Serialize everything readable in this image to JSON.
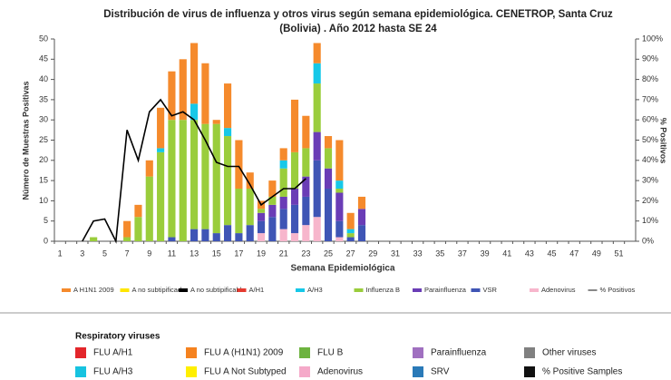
{
  "chart_data": {
    "type": "bar",
    "title": "Distribución de virus de influenza y otros virus según semana epidemiológica. CENETROP, Santa Cruz (Bolivia) .  Año 2012 hasta SE 24",
    "x_label": "Semana Epidemiológica",
    "y_label": "Número de Muestras Positivas",
    "y2_label": "% Positivos",
    "categories": [
      1,
      null,
      3,
      null,
      5,
      null,
      7,
      null,
      9,
      null,
      11,
      null,
      13,
      null,
      15,
      null,
      17,
      null,
      19,
      null,
      21,
      null,
      23,
      null,
      25,
      null,
      27,
      null,
      29,
      null,
      31,
      null,
      33,
      null,
      35,
      null,
      37,
      null,
      39,
      null,
      41,
      null,
      43,
      null,
      45,
      null,
      47,
      null,
      49,
      null,
      51,
      null
    ],
    "ylim": [
      0,
      50
    ],
    "yticks": [
      0,
      5,
      10,
      15,
      20,
      25,
      30,
      35,
      40,
      45,
      50
    ],
    "y2lim": [
      0,
      100
    ],
    "y2ticks": [
      {
        "value": 0,
        "label": "0%"
      },
      {
        "value": 10,
        "label": "10%"
      },
      {
        "value": 20,
        "label": "20%"
      },
      {
        "value": 30,
        "label": "30%"
      },
      {
        "value": 40,
        "label": "40%"
      },
      {
        "value": 50,
        "label": "50%"
      },
      {
        "value": 60,
        "label": "60%"
      },
      {
        "value": 70,
        "label": "70%"
      },
      {
        "value": 80,
        "label": "80%"
      },
      {
        "value": 90,
        "label": "90%"
      },
      {
        "value": 100,
        "label": "100%"
      }
    ],
    "stacked": true,
    "series": [
      {
        "name": "A H1N1 2009",
        "color": "#f58a2c",
        "values": [
          0,
          0,
          0,
          0,
          0,
          0,
          4,
          3,
          4,
          10,
          12,
          15,
          15,
          15,
          1,
          11,
          12,
          4,
          2,
          4,
          3,
          13,
          8,
          5,
          3,
          10,
          4,
          3,
          null,
          null,
          null,
          null,
          null,
          null,
          null,
          null,
          null,
          null,
          null,
          null,
          null,
          null,
          null,
          null,
          null,
          null,
          null,
          null,
          null,
          null,
          null,
          null
        ]
      },
      {
        "name": "A no subtipificado",
        "color": "#ffe600",
        "values": [
          0,
          0,
          0,
          0,
          0,
          0,
          0,
          0,
          0,
          0,
          0,
          0,
          0,
          0,
          0,
          0,
          0,
          0,
          0,
          0,
          0,
          0,
          0,
          0,
          0,
          0,
          0,
          0,
          null,
          null,
          null,
          null,
          null,
          null,
          null,
          null,
          null,
          null,
          null,
          null,
          null,
          null,
          null,
          null,
          null,
          null,
          null,
          null,
          null,
          null,
          null,
          null
        ]
      },
      {
        "name": "A no subtipificable",
        "color": "#000000",
        "values": [
          0,
          0,
          0,
          0,
          0,
          0,
          0,
          0,
          0,
          0,
          0,
          0,
          0,
          0,
          0,
          0,
          0,
          0,
          0,
          0,
          0,
          0,
          0,
          0,
          0,
          0,
          0,
          0,
          null,
          null,
          null,
          null,
          null,
          null,
          null,
          null,
          null,
          null,
          null,
          null,
          null,
          null,
          null,
          null,
          null,
          null,
          null,
          null,
          null,
          null,
          null,
          null
        ]
      },
      {
        "name": "A/H1",
        "color": "#e53a2f",
        "values": [
          0,
          0,
          0,
          0,
          0,
          0,
          0,
          0,
          0,
          0,
          0,
          0,
          0,
          0,
          0,
          0,
          0,
          0,
          0,
          0,
          0,
          0,
          0,
          0,
          0,
          0,
          0,
          0,
          null,
          null,
          null,
          null,
          null,
          null,
          null,
          null,
          null,
          null,
          null,
          null,
          null,
          null,
          null,
          null,
          null,
          null,
          null,
          null,
          null,
          null,
          null,
          null
        ]
      },
      {
        "name": "A/H3",
        "color": "#16c8e8",
        "values": [
          0,
          0,
          0,
          0,
          0,
          0,
          0,
          0,
          0,
          1,
          0,
          0,
          4,
          0,
          0,
          2,
          0,
          0,
          0,
          0,
          2,
          0,
          0,
          5,
          0,
          2,
          1,
          0,
          null,
          null,
          null,
          null,
          null,
          null,
          null,
          null,
          null,
          null,
          null,
          null,
          null,
          null,
          null,
          null,
          null,
          null,
          null,
          null,
          null,
          null,
          null,
          null
        ]
      },
      {
        "name": "Influenza  B",
        "color": "#9acd3c",
        "values": [
          0,
          0,
          0,
          1,
          0,
          0,
          1,
          6,
          16,
          22,
          29,
          30,
          27,
          26,
          27,
          22,
          11,
          9,
          1,
          2,
          7,
          9,
          7,
          12,
          5,
          1,
          1,
          0,
          null,
          null,
          null,
          null,
          null,
          null,
          null,
          null,
          null,
          null,
          null,
          null,
          null,
          null,
          null,
          null,
          null,
          null,
          null,
          null,
          null,
          null,
          null,
          null
        ]
      },
      {
        "name": "Parainfluenza",
        "color": "#6a3db6",
        "values": [
          0,
          0,
          0,
          0,
          0,
          0,
          0,
          0,
          0,
          0,
          0,
          0,
          0,
          0,
          0,
          0,
          0,
          0,
          2,
          3,
          3,
          4,
          5,
          7,
          5,
          7,
          0,
          4,
          null,
          null,
          null,
          null,
          null,
          null,
          null,
          null,
          null,
          null,
          null,
          null,
          null,
          null,
          null,
          null,
          null,
          null,
          null,
          null,
          null,
          null,
          null,
          null
        ]
      },
      {
        "name": "VSR",
        "color": "#3f55b5",
        "values": [
          0,
          0,
          0,
          0,
          0,
          0,
          0,
          0,
          0,
          0,
          1,
          0,
          3,
          3,
          2,
          4,
          2,
          4,
          3,
          6,
          5,
          7,
          7,
          14,
          13,
          4,
          1,
          4,
          null,
          null,
          null,
          null,
          null,
          null,
          null,
          null,
          null,
          null,
          null,
          null,
          null,
          null,
          null,
          null,
          null,
          null,
          null,
          null,
          null,
          null,
          null,
          null
        ]
      },
      {
        "name": "Adenovirus",
        "color": "#f7b6cc",
        "values": [
          0,
          0,
          0,
          0,
          0,
          0,
          0,
          0,
          0,
          0,
          0,
          0,
          0,
          0,
          0,
          0,
          0,
          0,
          2,
          0,
          3,
          2,
          4,
          6,
          0,
          1,
          0,
          0,
          null,
          null,
          null,
          null,
          null,
          null,
          null,
          null,
          null,
          null,
          null,
          null,
          null,
          null,
          null,
          null,
          null,
          null,
          null,
          null,
          null,
          null,
          null,
          null
        ]
      },
      {
        "name": "% Positivos",
        "color": "#000000",
        "type": "line",
        "axis": "y2",
        "values": [
          null,
          null,
          0,
          10,
          11,
          0,
          55,
          40,
          64,
          70,
          62,
          64,
          60,
          50,
          39,
          37,
          37,
          28,
          18,
          22,
          26,
          26,
          31,
          null,
          null,
          null,
          null,
          null,
          null,
          null,
          null,
          null,
          null,
          null,
          null,
          null,
          null,
          null,
          null,
          null,
          null,
          null,
          null,
          null,
          null,
          null,
          null,
          null,
          null,
          null,
          null,
          null
        ]
      }
    ]
  },
  "bottom_legend": {
    "title": "Respiratory viruses",
    "items": [
      {
        "label": "FLU A/H1",
        "color": "#e3262b"
      },
      {
        "label": "FLU A (H1N1) 2009",
        "color": "#f5821f"
      },
      {
        "label": "FLU B",
        "color": "#6db33f"
      },
      {
        "label": "Parainfluenza",
        "color": "#a070c0"
      },
      {
        "label": "Other viruses",
        "color": "#808080"
      },
      {
        "label": "FLU A/H3",
        "color": "#17c3e0"
      },
      {
        "label": "FLU A Not Subtyped",
        "color": "#ffef00"
      },
      {
        "label": "Adenovirus",
        "color": "#f5a9c9"
      },
      {
        "label": "SRV",
        "color": "#2a7ab8"
      },
      {
        "label": "% Positive Samples",
        "color": "#111111"
      }
    ]
  }
}
